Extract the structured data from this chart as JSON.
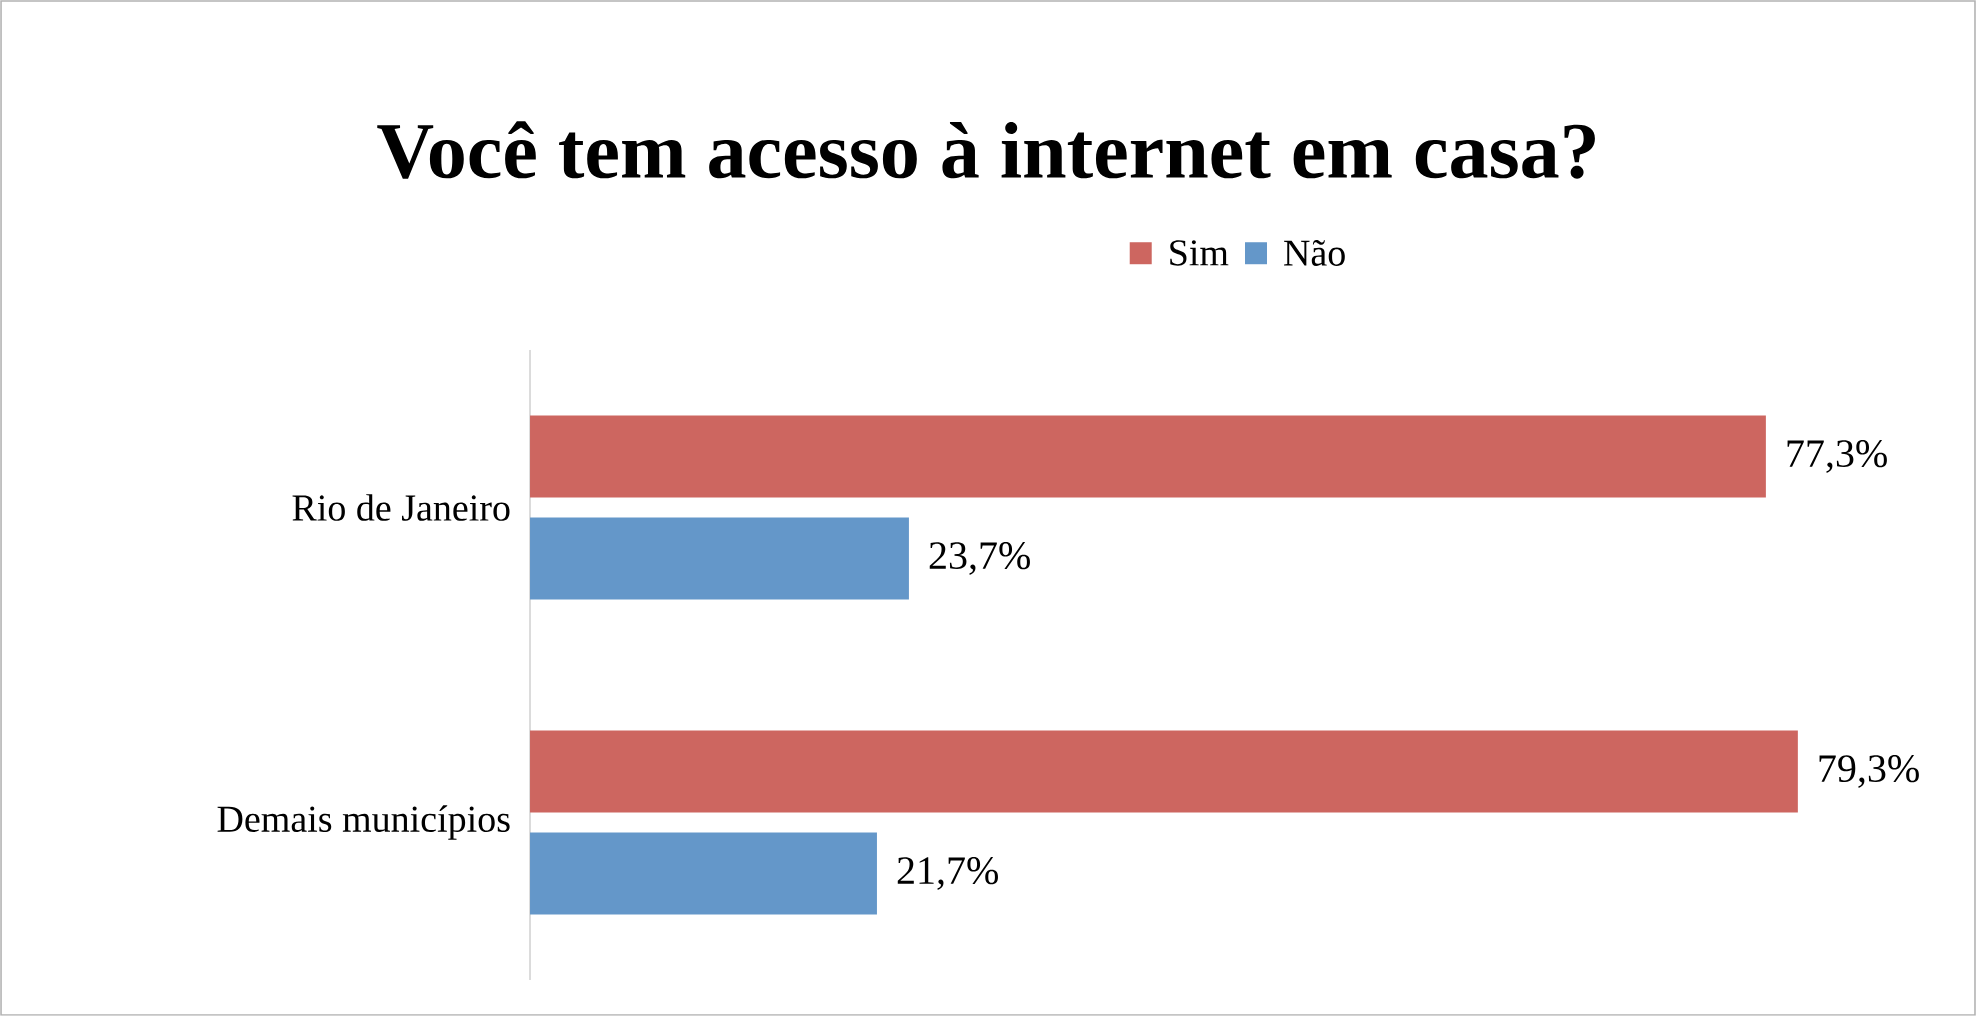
{
  "chart_data": {
    "type": "bar",
    "orientation": "horizontal",
    "title": "Você tem acesso à internet em casa?",
    "categories": [
      "Rio de Janeiro",
      "Demais municípios"
    ],
    "series": [
      {
        "name": "Sim",
        "color": "#cd6660",
        "values": [
          77.3,
          79.3
        ],
        "value_labels": [
          "77,3%",
          "79,3%"
        ]
      },
      {
        "name": "Não",
        "color": "#6497c9",
        "values": [
          23.7,
          21.7
        ],
        "value_labels": [
          "23,7%",
          "21,7%"
        ]
      }
    ],
    "tick_labels": "y",
    "legend": "top",
    "grid": false
  }
}
